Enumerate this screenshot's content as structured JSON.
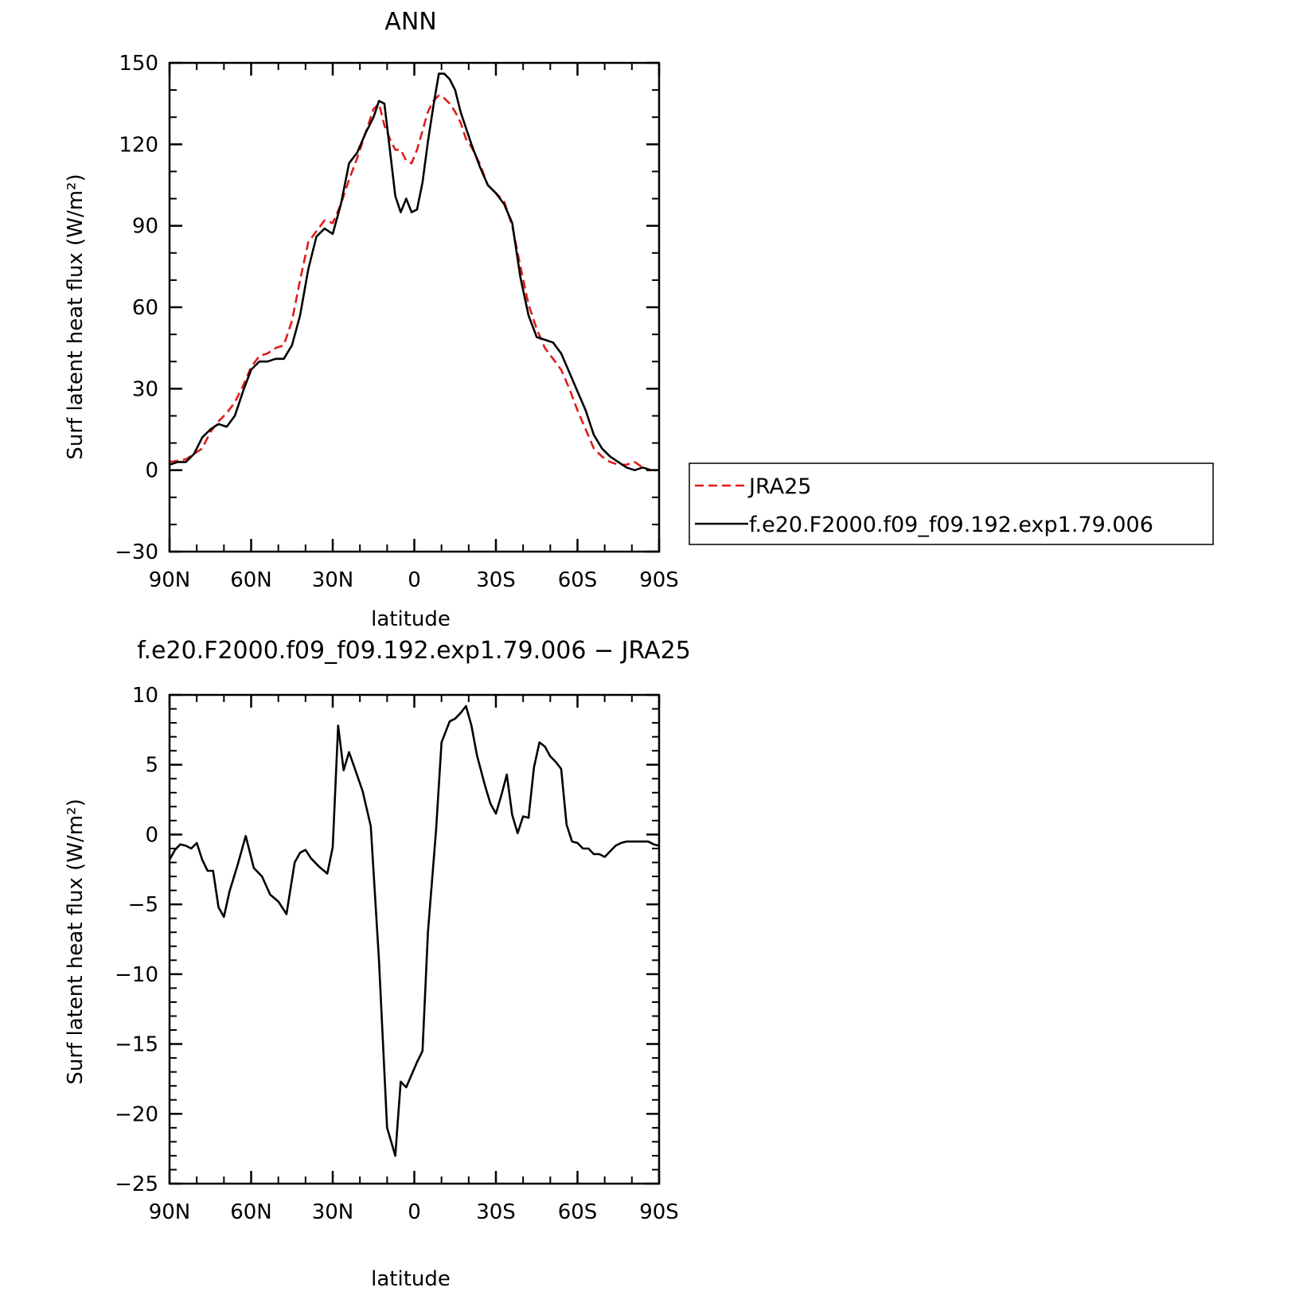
{
  "chart_data": [
    {
      "type": "line",
      "title": "ANN",
      "xlabel": "latitude",
      "ylabel": "Surf latent heat flux (W/m²)",
      "xlim": [
        90,
        -90
      ],
      "ylim": [
        -30,
        150
      ],
      "xticks": [
        {
          "value": 90,
          "label": "90N"
        },
        {
          "value": 60,
          "label": "60N"
        },
        {
          "value": 30,
          "label": "30N"
        },
        {
          "value": 0,
          "label": "0"
        },
        {
          "value": -30,
          "label": "30S"
        },
        {
          "value": -60,
          "label": "60S"
        },
        {
          "value": -90,
          "label": "90S"
        }
      ],
      "yticks": [
        {
          "value": -30,
          "label": "−30"
        },
        {
          "value": 0,
          "label": "0"
        },
        {
          "value": 30,
          "label": "30"
        },
        {
          "value": 60,
          "label": "60"
        },
        {
          "value": 90,
          "label": "90"
        },
        {
          "value": 120,
          "label": "120"
        },
        {
          "value": 150,
          "label": "150"
        }
      ],
      "grid": false,
      "legend": {
        "position": "right",
        "entries": [
          {
            "label": "JRA25",
            "color": "#e01b1b",
            "style": "dashed"
          },
          {
            "label": "f.e20.F2000.f09_f09.192.exp1.79.006",
            "color": "#000000",
            "style": "solid"
          }
        ]
      },
      "series": [
        {
          "name": "JRA25",
          "color": "#e01b1b",
          "style": "dashed",
          "x": [
            90,
            84,
            78,
            75,
            72,
            69,
            66,
            63,
            60,
            57,
            54,
            51,
            48,
            45,
            42,
            39,
            36,
            33,
            30,
            27,
            24,
            21,
            18,
            15,
            13,
            11,
            9,
            7,
            5,
            3,
            1,
            -1,
            -3,
            -5,
            -7,
            -9,
            -11,
            -13,
            -15,
            -17,
            -19,
            -21,
            -24,
            -27,
            -30,
            -33,
            -36,
            -39,
            -42,
            -45,
            -48,
            -51,
            -54,
            -57,
            -60,
            -63,
            -66,
            -69,
            -72,
            -75,
            -78,
            -81,
            -84,
            -87,
            -90
          ],
          "y": [
            3,
            4,
            8,
            14,
            18,
            21,
            25,
            31,
            38,
            42,
            43,
            45,
            46,
            55,
            70,
            84,
            88,
            92,
            91,
            98,
            107,
            115,
            124,
            133,
            135,
            127,
            122,
            118,
            118,
            114,
            113,
            118,
            125,
            132,
            136,
            138,
            137,
            135,
            132,
            128,
            122,
            119,
            113,
            105,
            102,
            99,
            90,
            75,
            61,
            52,
            45,
            41,
            37,
            30,
            22,
            15,
            8,
            5,
            3,
            2,
            2,
            3,
            1,
            0,
            0
          ]
        },
        {
          "name": "f.e20.F2000.f09_f09.192.exp1.79.006",
          "color": "#000000",
          "style": "solid",
          "x": [
            90,
            87,
            84,
            81,
            78,
            75,
            72,
            69,
            66,
            63,
            60,
            57,
            54,
            51,
            48,
            45,
            42,
            39,
            36,
            33,
            30,
            27,
            24,
            21,
            18,
            15,
            13,
            11,
            9,
            7,
            5,
            3,
            1,
            -1,
            -3,
            -5,
            -7,
            -9,
            -11,
            -13,
            -15,
            -17,
            -19,
            -21,
            -24,
            -27,
            -30,
            -33,
            -36,
            -39,
            -42,
            -45,
            -48,
            -51,
            -54,
            -57,
            -60,
            -63,
            -66,
            -69,
            -72,
            -75,
            -78,
            -81,
            -84,
            -87,
            -90
          ],
          "y": [
            2,
            3,
            3,
            6,
            12,
            15,
            17,
            16,
            20,
            29,
            37,
            40,
            40,
            41,
            41,
            46,
            57,
            74,
            86,
            89,
            87,
            98,
            113,
            117,
            124,
            130,
            136,
            135,
            118,
            101,
            95,
            100,
            95,
            96,
            106,
            121,
            134,
            146,
            146,
            144,
            140,
            132,
            126,
            120,
            112,
            105,
            102,
            98,
            91,
            71,
            57,
            49,
            48,
            47,
            43,
            36,
            29,
            22,
            13,
            8,
            5,
            3,
            1,
            0,
            1,
            0,
            0
          ]
        }
      ]
    },
    {
      "type": "line",
      "title": "f.e20.F2000.f09_f09.192.exp1.79.006 − JRA25",
      "xlabel": "latitude",
      "ylabel": "Surf latent heat flux (W/m²)",
      "xlim": [
        90,
        -90
      ],
      "ylim": [
        -25,
        10
      ],
      "xticks": [
        {
          "value": 90,
          "label": "90N"
        },
        {
          "value": 60,
          "label": "60N"
        },
        {
          "value": 30,
          "label": "30N"
        },
        {
          "value": 0,
          "label": "0"
        },
        {
          "value": -30,
          "label": "30S"
        },
        {
          "value": -60,
          "label": "60S"
        },
        {
          "value": -90,
          "label": "90S"
        }
      ],
      "yticks": [
        {
          "value": -25,
          "label": "−25"
        },
        {
          "value": -20,
          "label": "−20"
        },
        {
          "value": -15,
          "label": "−15"
        },
        {
          "value": -10,
          "label": "−10"
        },
        {
          "value": -5,
          "label": "−5"
        },
        {
          "value": 0,
          "label": "0"
        },
        {
          "value": 5,
          "label": "5"
        },
        {
          "value": 10,
          "label": "10"
        }
      ],
      "grid": false,
      "series": [
        {
          "color": "#000000",
          "style": "solid",
          "x": [
            90,
            88,
            86,
            84,
            82,
            80,
            78,
            76,
            74,
            72,
            70,
            68,
            65,
            62,
            59,
            56,
            53,
            50,
            47,
            44,
            42,
            40,
            38,
            35,
            32,
            30,
            28,
            26,
            24,
            22,
            19,
            16,
            13,
            10,
            7,
            5,
            3,
            1,
            -1,
            -3,
            -5,
            -8,
            -10,
            -13,
            -15,
            -17,
            -19,
            -21,
            -23,
            -26,
            -28,
            -30,
            -32,
            -34,
            -36,
            -38,
            -40,
            -42,
            -44,
            -46,
            -48,
            -50,
            -52,
            -54,
            -56,
            -58,
            -60,
            -62,
            -64,
            -66,
            -68,
            -70,
            -72,
            -74,
            -76,
            -78,
            -80,
            -82,
            -84,
            -86,
            -88,
            -90
          ],
          "y": [
            -1.8,
            -1.1,
            -0.7,
            -0.8,
            -1.0,
            -0.6,
            -1.8,
            -2.6,
            -2.6,
            -5.2,
            -5.9,
            -4.1,
            -2.2,
            -0.1,
            -2.4,
            -3.0,
            -4.3,
            -4.8,
            -5.7,
            -2.0,
            -1.3,
            -1.1,
            -1.7,
            -2.3,
            -2.8,
            -0.9,
            7.8,
            4.6,
            5.9,
            4.8,
            3.1,
            0.6,
            -9.0,
            -21.0,
            -23.0,
            -17.7,
            -18.1,
            -17.2,
            -16.3,
            -15.5,
            -7.0,
            0.3,
            6.6,
            8.1,
            8.3,
            8.7,
            9.2,
            7.8,
            5.7,
            3.5,
            2.2,
            1.5,
            2.8,
            4.3,
            1.4,
            0.1,
            1.3,
            1.2,
            4.8,
            6.6,
            6.3,
            5.6,
            5.2,
            4.7,
            0.7,
            -0.5,
            -0.6,
            -1.0,
            -1.0,
            -1.4,
            -1.4,
            -1.6,
            -1.2,
            -0.8,
            -0.6,
            -0.5,
            -0.5,
            -0.5,
            -0.5,
            -0.5,
            -0.7,
            -0.8
          ]
        }
      ]
    }
  ]
}
